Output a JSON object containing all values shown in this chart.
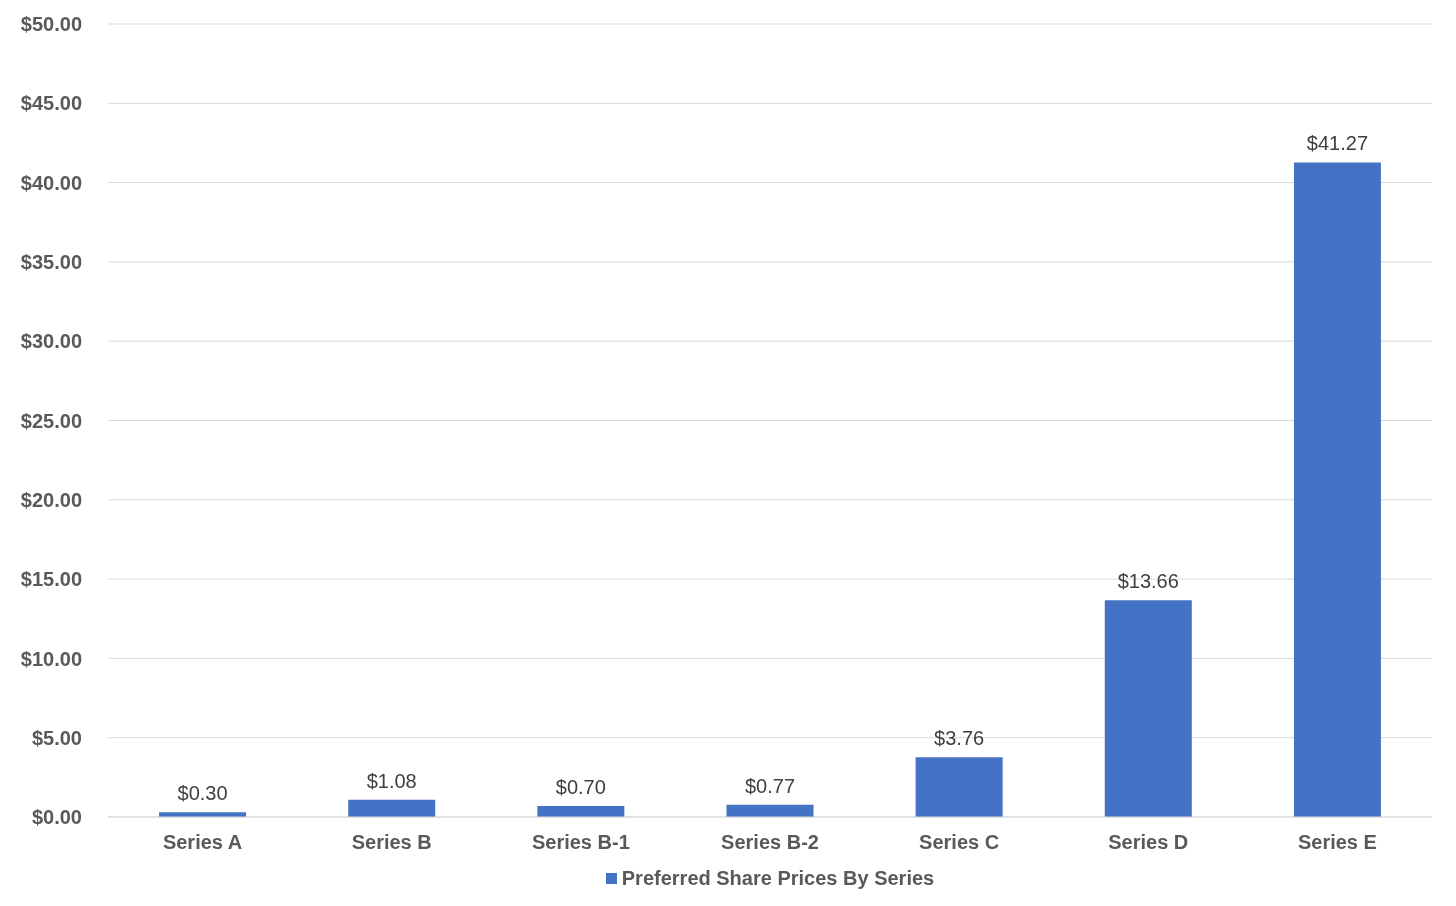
{
  "chart_data": {
    "type": "bar",
    "categories": [
      "Series A",
      "Series B",
      "Series B-1",
      "Series B-2",
      "Series C",
      "Series D",
      "Series E"
    ],
    "series": [
      {
        "name": "Preferred Share Prices By Series",
        "color": "#4472c4",
        "values": [
          0.3,
          1.08,
          0.7,
          0.77,
          3.76,
          13.66,
          41.27
        ],
        "value_labels": [
          "$0.30",
          "$1.08",
          "$0.70",
          "$0.77",
          "$3.76",
          "$13.66",
          "$41.27"
        ]
      }
    ],
    "ylim": [
      0,
      50
    ],
    "yticks": [
      {
        "value": 0,
        "label": "$0.00"
      },
      {
        "value": 5,
        "label": "$5.00"
      },
      {
        "value": 10,
        "label": "$10.00"
      },
      {
        "value": 15,
        "label": "$15.00"
      },
      {
        "value": 20,
        "label": "$20.00"
      },
      {
        "value": 25,
        "label": "$25.00"
      },
      {
        "value": 30,
        "label": "$30.00"
      },
      {
        "value": 35,
        "label": "$35.00"
      },
      {
        "value": 40,
        "label": "$40.00"
      },
      {
        "value": 45,
        "label": "$45.00"
      },
      {
        "value": 50,
        "label": "$50.00"
      }
    ],
    "grid": "y",
    "legend": "bottom"
  }
}
